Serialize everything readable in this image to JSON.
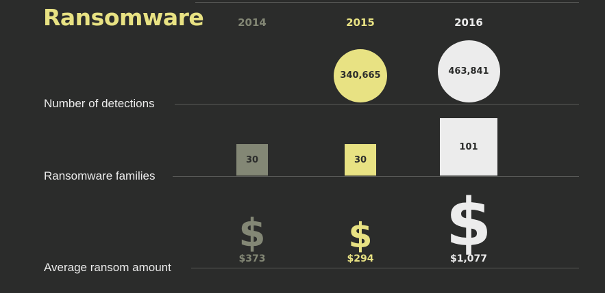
{
  "title": "Ransomware",
  "colors": {
    "2014": "#838775",
    "2015": "#e8e283",
    "2016": "#ececec",
    "background": "#2b2c2b"
  },
  "chart_data": {
    "type": "table",
    "years": [
      "2014",
      "2015",
      "2016"
    ],
    "rows": [
      {
        "label": "Number of detections",
        "values": [
          null,
          340665,
          463841
        ],
        "display": [
          "",
          "340,665",
          "463,841"
        ]
      },
      {
        "label": "Ransomware families",
        "values": [
          30,
          30,
          101
        ],
        "display": [
          "30",
          "30",
          "101"
        ]
      },
      {
        "label": "Average ransom amount",
        "values": [
          373,
          294,
          1077
        ],
        "display": [
          "$373",
          "$294",
          "$1,077"
        ]
      }
    ]
  }
}
